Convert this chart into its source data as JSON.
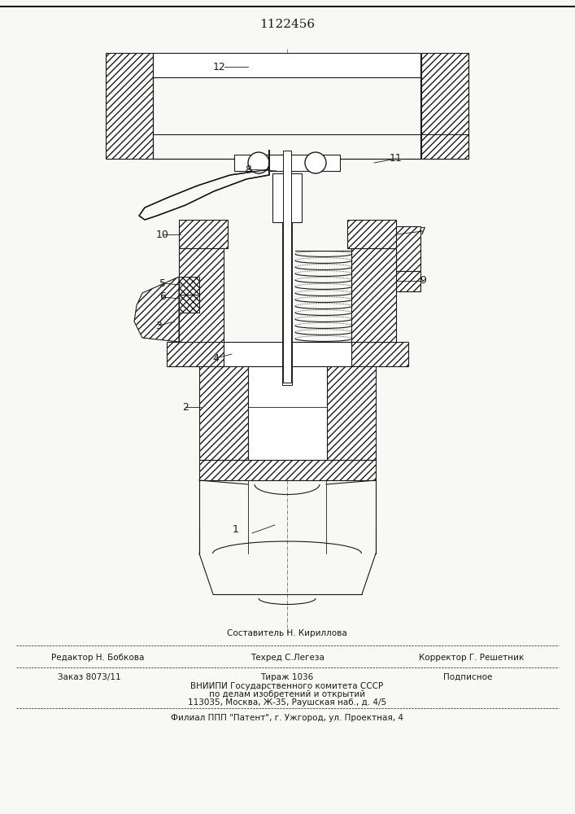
{
  "title": "1122456",
  "bg_color": "#f8f8f5",
  "lc": "#1a1a1a",
  "footer": {
    "composer": "Составитель Н. Кириллова",
    "editor": "Редактор Н. Бобкова",
    "techred": "Техред С.Легеза",
    "corrector": "Корректор Г. Решетник",
    "order": "Заказ 8073/11",
    "circulation": "Тираж 1036",
    "subscription": "Подписное",
    "inst1": "ВНИИПИ Государственного комитета СССР",
    "inst2": "по делам изобретений и открытий",
    "addr": "113035, Москва, Ж-35, Раушская наб., д. 4/5",
    "branch": "Филиал ППП \"Патент\", г. Ужгород, ул. Проектная, 4"
  }
}
